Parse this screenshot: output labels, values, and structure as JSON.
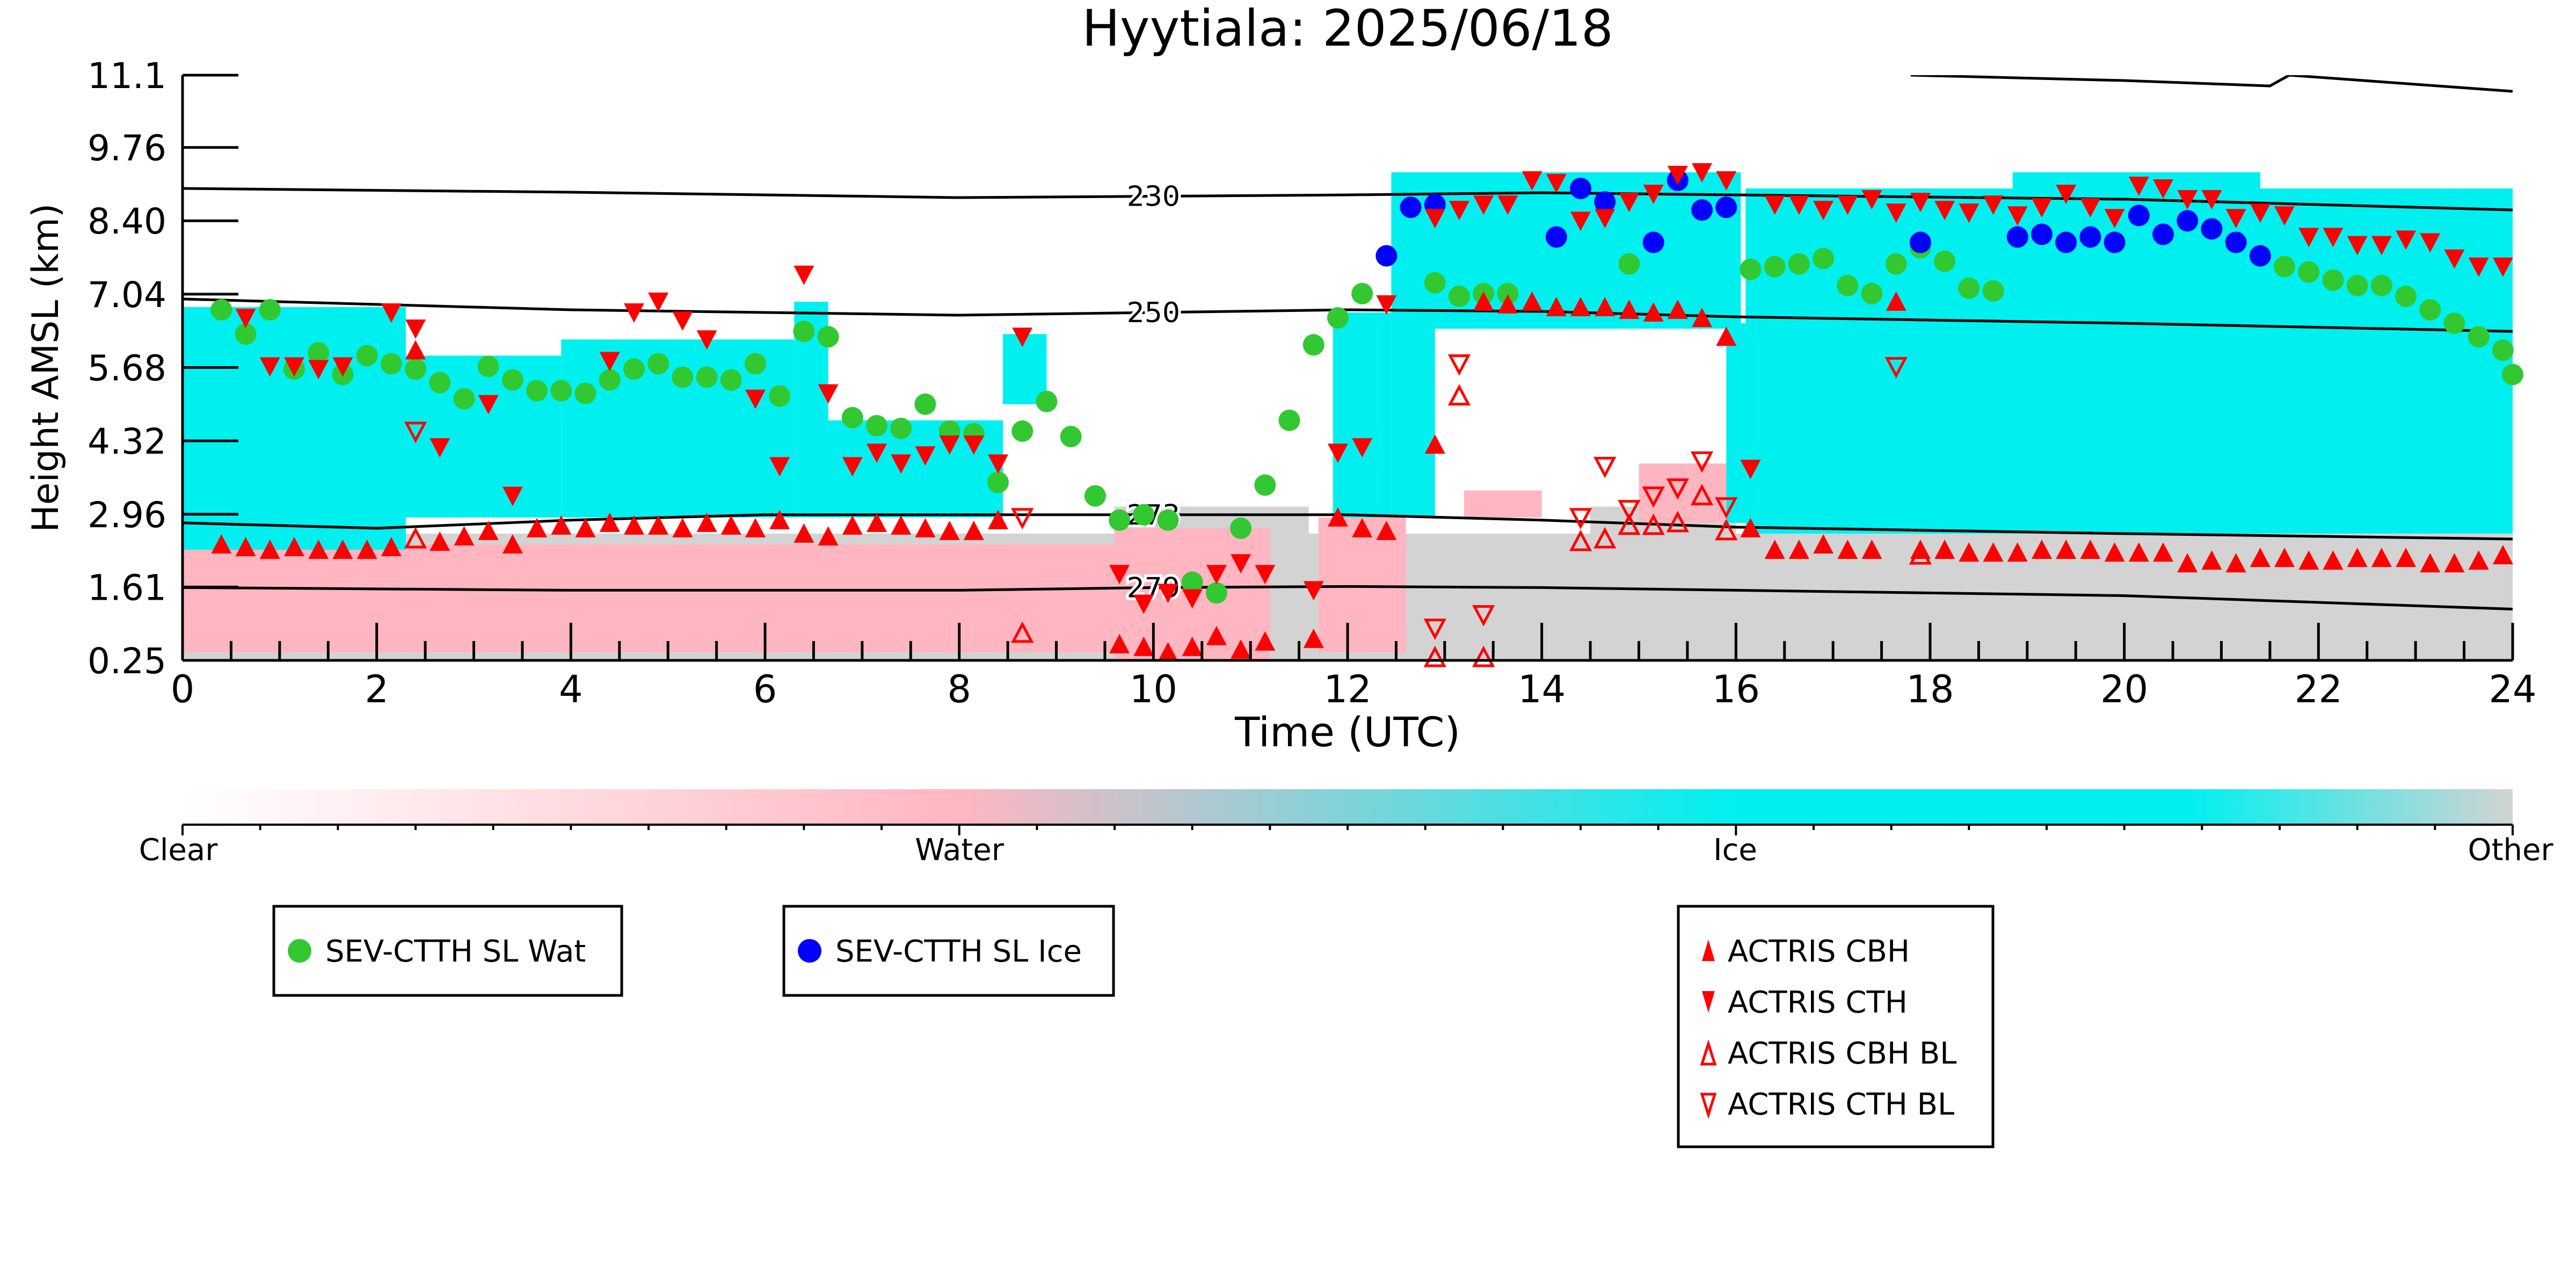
{
  "chart_data": {
    "type": "scatter",
    "title": "Hyytiala: 2025/06/18",
    "xlabel": "Time (UTC)",
    "ylabel": "Height AMSL (km)",
    "xlim": [
      0,
      24
    ],
    "ylim": [
      0.25,
      11.1
    ],
    "x_ticks": [
      "0",
      "2",
      "4",
      "6",
      "8",
      "10",
      "12",
      "14",
      "16",
      "18",
      "20",
      "22",
      "24"
    ],
    "y_ticks": [
      "0.25",
      "1.61",
      "2.96",
      "4.32",
      "5.68",
      "7.04",
      "8.40",
      "9.76",
      "11.1"
    ],
    "grid": false,
    "colorbar": {
      "labels": [
        "Clear",
        "Water",
        "Ice",
        "Other"
      ],
      "colors": [
        "#ffffff",
        "#ffb6c1",
        "#00f0f0",
        "#d3d3d3"
      ]
    },
    "isotherms": [
      {
        "label": "230",
        "x": [
          0,
          4,
          8,
          12,
          14,
          16,
          20,
          24
        ],
        "y": [
          9.0,
          8.93,
          8.83,
          8.88,
          8.92,
          8.88,
          8.8,
          8.6
        ]
      },
      {
        "label": "250",
        "x": [
          0,
          4,
          8,
          12,
          14,
          16,
          20,
          24
        ],
        "y": [
          6.95,
          6.75,
          6.65,
          6.75,
          6.72,
          6.62,
          6.5,
          6.35
        ]
      },
      {
        "label": "273",
        "x": [
          0,
          2,
          4,
          6,
          8,
          10,
          12,
          14,
          16,
          20,
          24
        ],
        "y": [
          2.8,
          2.7,
          2.85,
          2.95,
          2.95,
          2.95,
          2.95,
          2.85,
          2.72,
          2.6,
          2.5
        ]
      },
      {
        "label": "279",
        "x": [
          0,
          4,
          8,
          10,
          12,
          14,
          16,
          20,
          24
        ],
        "y": [
          1.6,
          1.55,
          1.55,
          1.6,
          1.62,
          1.6,
          1.55,
          1.45,
          1.2
        ]
      },
      {
        "label": "",
        "x": [
          17.8,
          20,
          21.5,
          21.7,
          24
        ],
        "y": [
          11.1,
          11.0,
          10.9,
          11.1,
          10.8
        ]
      }
    ],
    "clouds": {
      "ice": [
        {
          "x0": 0.0,
          "x1": 2.3,
          "y0": 2.3,
          "y1": 6.8
        },
        {
          "x0": 2.3,
          "x1": 3.9,
          "y0": 2.9,
          "y1": 5.9
        },
        {
          "x0": 3.9,
          "x1": 6.3,
          "y0": 2.9,
          "y1": 6.2
        },
        {
          "x0": 6.3,
          "x1": 6.65,
          "y0": 2.9,
          "y1": 6.9
        },
        {
          "x0": 6.65,
          "x1": 8.45,
          "y0": 2.9,
          "y1": 4.7
        },
        {
          "x0": 8.45,
          "x1": 8.9,
          "y0": 5.0,
          "y1": 6.3
        },
        {
          "x0": 11.85,
          "x1": 12.45,
          "y0": 2.9,
          "y1": 6.7
        },
        {
          "x0": 12.45,
          "x1": 16.05,
          "y0": 6.4,
          "y1": 9.3
        },
        {
          "x0": 12.45,
          "x1": 12.9,
          "y0": 2.9,
          "y1": 6.5
        },
        {
          "x0": 15.9,
          "x1": 16.1,
          "y0": 2.8,
          "y1": 6.5
        },
        {
          "x0": 16.1,
          "x1": 24.0,
          "y0": 2.6,
          "y1": 9.0
        },
        {
          "x0": 18.85,
          "x1": 21.4,
          "y0": 8.9,
          "y1": 9.3
        }
      ],
      "water": [
        {
          "x0": 0.0,
          "x1": 9.6,
          "y0": 0.4,
          "y1": 2.4
        },
        {
          "x0": 9.6,
          "x1": 11.2,
          "y0": 0.25,
          "y1": 2.7
        },
        {
          "x0": 11.7,
          "x1": 12.6,
          "y0": 0.4,
          "y1": 2.9
        },
        {
          "x0": 13.2,
          "x1": 14.0,
          "y0": 2.9,
          "y1": 3.4
        },
        {
          "x0": 15.0,
          "x1": 16.0,
          "y0": 2.8,
          "y1": 3.9
        }
      ],
      "other": [
        {
          "x0": 0.0,
          "x1": 24.0,
          "y0": 0.25,
          "y1": 2.6
        },
        {
          "x0": 9.6,
          "x1": 11.6,
          "y0": 2.4,
          "y1": 3.1
        },
        {
          "x0": 12.9,
          "x1": 14.5,
          "y0": 1.4,
          "y1": 2.5
        },
        {
          "x0": 14.5,
          "x1": 16.0,
          "y0": 2.0,
          "y1": 3.1
        }
      ]
    },
    "series": [
      {
        "name": "SEV-CTTH SL Wat",
        "marker": "circle",
        "color": "#32c832",
        "x": [
          0.4,
          0.65,
          0.9,
          1.15,
          1.4,
          1.65,
          1.9,
          2.15,
          2.4,
          2.65,
          2.9,
          3.15,
          3.4,
          3.65,
          3.9,
          4.15,
          4.4,
          4.65,
          4.9,
          5.15,
          5.4,
          5.65,
          5.9,
          6.15,
          6.4,
          6.65,
          6.9,
          7.15,
          7.4,
          7.65,
          7.9,
          8.15,
          8.4,
          8.65,
          8.9,
          9.15,
          9.4,
          9.65,
          9.9,
          10.15,
          10.4,
          10.65,
          10.9,
          11.15,
          11.4,
          11.65,
          11.9,
          12.15,
          12.9,
          13.15,
          13.4,
          13.65,
          14.9,
          16.15,
          16.4,
          16.65,
          16.9,
          17.15,
          17.4,
          17.65,
          17.9,
          18.15,
          18.4,
          18.65,
          21.65,
          21.9,
          22.15,
          22.4,
          22.65,
          22.9,
          23.15,
          23.4,
          23.65,
          23.9,
          24.0
        ],
        "y": [
          6.75,
          6.3,
          6.75,
          5.65,
          5.95,
          5.55,
          5.9,
          5.75,
          5.65,
          5.4,
          5.1,
          5.7,
          5.45,
          5.25,
          5.25,
          5.2,
          5.45,
          5.65,
          5.75,
          5.5,
          5.5,
          5.45,
          5.75,
          5.15,
          6.35,
          6.25,
          4.75,
          4.6,
          4.55,
          5.0,
          4.5,
          4.45,
          3.55,
          4.5,
          5.05,
          4.4,
          3.3,
          2.85,
          2.95,
          2.85,
          1.7,
          1.5,
          2.7,
          3.5,
          4.7,
          6.1,
          6.6,
          7.05,
          7.25,
          7.0,
          7.05,
          7.05,
          7.6,
          7.5,
          7.55,
          7.6,
          7.7,
          7.2,
          7.05,
          7.6,
          7.9,
          7.65,
          7.15,
          7.1,
          7.55,
          7.45,
          7.3,
          7.2,
          7.2,
          7.0,
          6.75,
          6.5,
          6.25,
          6.0,
          5.55
        ]
      },
      {
        "name": "SEV-CTTH SL Ice",
        "marker": "circle",
        "color": "#0000ff",
        "x": [
          12.4,
          12.65,
          12.9,
          14.15,
          14.4,
          14.65,
          15.15,
          15.4,
          15.65,
          15.9,
          17.9,
          18.9,
          19.15,
          19.4,
          19.65,
          19.9,
          20.15,
          20.4,
          20.65,
          20.9,
          21.15,
          21.4
        ],
        "y": [
          7.75,
          8.65,
          8.7,
          8.1,
          9.0,
          8.75,
          8.0,
          9.15,
          8.6,
          8.65,
          8.0,
          8.1,
          8.15,
          8.0,
          8.1,
          8.0,
          8.5,
          8.15,
          8.4,
          8.25,
          8.0,
          7.75
        ]
      },
      {
        "name": "ACTRIS CBH",
        "marker": "triangle-up",
        "color": "#ff0000",
        "x": [
          0.4,
          0.65,
          0.9,
          1.15,
          1.4,
          1.65,
          1.9,
          2.15,
          2.4,
          2.65,
          2.9,
          3.15,
          3.4,
          3.65,
          3.9,
          4.15,
          4.4,
          4.65,
          4.9,
          5.15,
          5.4,
          5.65,
          5.9,
          6.15,
          6.4,
          6.65,
          6.9,
          7.15,
          7.4,
          7.65,
          7.9,
          8.15,
          8.4,
          9.65,
          9.9,
          10.15,
          10.4,
          10.65,
          10.9,
          11.15,
          11.65,
          11.9,
          12.15,
          12.4,
          12.9,
          13.4,
          13.65,
          13.9,
          14.15,
          14.4,
          14.65,
          14.9,
          15.15,
          15.4,
          15.65,
          15.9,
          16.15,
          16.4,
          16.65,
          16.9,
          17.15,
          17.4,
          17.65,
          17.9,
          18.15,
          18.4,
          18.65,
          18.9,
          19.15,
          19.4,
          19.65,
          19.9,
          20.15,
          20.4,
          20.65,
          20.9,
          21.15,
          21.4,
          21.65,
          21.9,
          22.15,
          22.4,
          22.65,
          22.9,
          23.15,
          23.4,
          23.65,
          23.9
        ],
        "y": [
          2.4,
          2.35,
          2.3,
          2.35,
          2.3,
          2.3,
          2.3,
          2.35,
          6.0,
          2.45,
          2.55,
          2.65,
          2.4,
          2.7,
          2.75,
          2.7,
          2.8,
          2.75,
          2.75,
          2.7,
          2.8,
          2.75,
          2.7,
          2.85,
          2.6,
          2.55,
          2.75,
          2.8,
          2.75,
          2.7,
          2.65,
          2.65,
          2.85,
          0.55,
          0.5,
          0.4,
          0.5,
          0.7,
          0.45,
          0.6,
          0.65,
          2.9,
          2.7,
          2.65,
          4.25,
          6.9,
          6.85,
          6.9,
          6.8,
          6.8,
          6.8,
          6.75,
          6.7,
          6.75,
          6.6,
          6.25,
          2.7,
          2.3,
          2.3,
          2.4,
          2.3,
          2.3,
          6.9,
          2.3,
          2.3,
          2.25,
          2.25,
          2.25,
          2.3,
          2.3,
          2.3,
          2.25,
          2.25,
          2.25,
          2.05,
          2.1,
          2.05,
          2.15,
          2.15,
          2.1,
          2.1,
          2.15,
          2.15,
          2.15,
          2.05,
          2.05,
          2.1,
          2.2
        ]
      },
      {
        "name": "ACTRIS CTH",
        "marker": "triangle-down",
        "color": "#ff0000",
        "x": [
          0.65,
          0.9,
          1.15,
          1.4,
          1.65,
          2.15,
          2.4,
          2.65,
          3.15,
          3.4,
          4.4,
          4.65,
          4.9,
          5.15,
          5.4,
          5.9,
          6.15,
          6.4,
          6.65,
          6.9,
          7.15,
          7.4,
          7.65,
          7.9,
          8.15,
          8.4,
          8.65,
          9.65,
          9.9,
          10.15,
          10.4,
          10.65,
          10.9,
          11.15,
          11.65,
          11.9,
          12.15,
          12.4,
          12.9,
          13.15,
          13.4,
          13.65,
          13.9,
          14.15,
          14.4,
          14.65,
          14.9,
          15.15,
          15.4,
          15.65,
          15.9,
          16.15,
          16.4,
          16.65,
          16.9,
          17.15,
          17.4,
          17.65,
          17.9,
          18.15,
          18.4,
          18.65,
          18.9,
          19.15,
          19.4,
          19.65,
          19.9,
          20.15,
          20.4,
          20.65,
          20.9,
          21.15,
          21.4,
          21.65,
          21.9,
          22.15,
          22.4,
          22.65,
          22.9,
          23.15,
          23.4,
          23.65,
          23.9
        ],
        "y": [
          6.6,
          5.7,
          5.7,
          5.65,
          5.7,
          6.7,
          6.4,
          4.2,
          5.0,
          3.3,
          5.8,
          6.7,
          6.9,
          6.55,
          6.2,
          5.1,
          3.85,
          7.4,
          5.2,
          3.85,
          4.1,
          3.9,
          4.05,
          4.25,
          4.25,
          3.9,
          6.25,
          1.85,
          1.3,
          1.5,
          1.4,
          1.85,
          2.05,
          1.85,
          1.55,
          4.1,
          4.2,
          6.85,
          8.45,
          8.6,
          8.7,
          8.7,
          9.15,
          9.1,
          8.4,
          8.45,
          8.75,
          8.9,
          9.25,
          9.3,
          9.15,
          3.8,
          8.7,
          8.7,
          8.6,
          8.7,
          8.8,
          8.55,
          8.75,
          8.6,
          8.55,
          8.7,
          8.5,
          8.65,
          8.9,
          8.65,
          8.45,
          9.05,
          9.0,
          8.8,
          8.8,
          8.45,
          8.55,
          8.5,
          8.1,
          8.1,
          7.95,
          7.95,
          8.05,
          8.0,
          7.7,
          7.55,
          7.55
        ]
      },
      {
        "name": "ACTRIS CBH BL",
        "marker": "triangle-up-open",
        "color": "#ff0000",
        "x": [
          2.4,
          8.65,
          12.9,
          13.15,
          13.4,
          14.4,
          14.65,
          14.9,
          15.15,
          15.4,
          15.65,
          15.9,
          17.9
        ],
        "y": [
          2.5,
          0.75,
          0.3,
          5.15,
          0.3,
          2.45,
          2.5,
          2.75,
          2.75,
          2.8,
          3.3,
          2.65,
          2.2
        ]
      },
      {
        "name": "ACTRIS CTH BL",
        "marker": "triangle-down-open",
        "color": "#ff0000",
        "x": [
          2.4,
          8.65,
          12.9,
          13.15,
          13.4,
          14.4,
          14.65,
          14.9,
          15.15,
          15.4,
          15.65,
          15.9,
          17.65
        ],
        "y": [
          4.5,
          2.9,
          0.85,
          5.75,
          1.1,
          2.9,
          3.85,
          3.05,
          3.3,
          3.45,
          3.95,
          3.1,
          5.7
        ]
      }
    ]
  }
}
